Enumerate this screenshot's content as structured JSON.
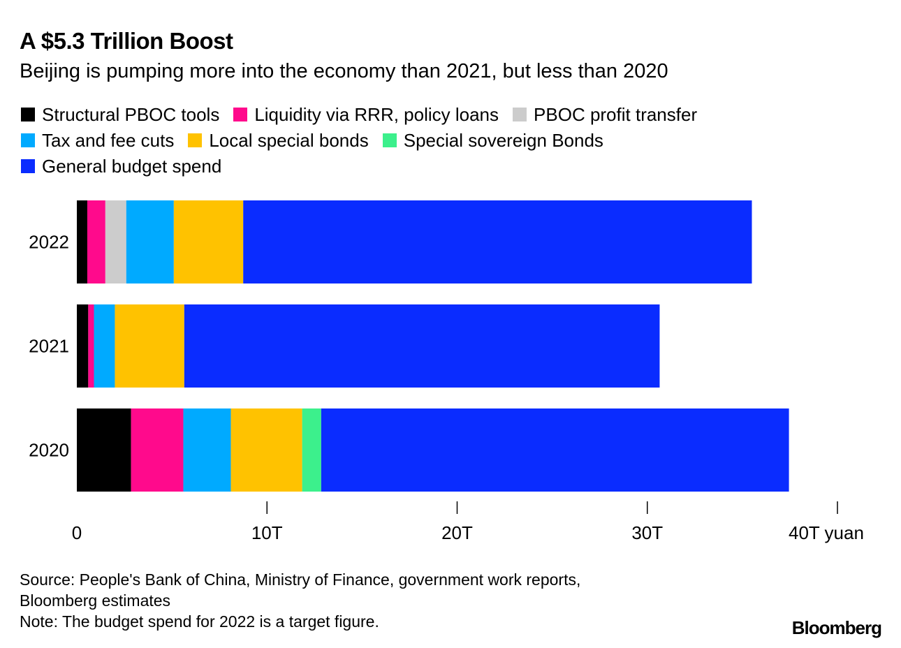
{
  "header": {
    "title": "A $5.3 Trillion Boost",
    "subtitle": "Beijing is pumping more into the economy than 2021, but less than 2020"
  },
  "chart_data": {
    "type": "bar",
    "orientation": "horizontal",
    "stacked": true,
    "categories": [
      "2022",
      "2021",
      "2020"
    ],
    "series": [
      {
        "name": "Structural PBOC tools",
        "color": "#000000",
        "values": [
          0.55,
          0.6,
          2.85
        ]
      },
      {
        "name": "Liquidity via RRR, policy loans",
        "color": "#ff0a8c",
        "values": [
          0.95,
          0.3,
          2.75
        ]
      },
      {
        "name": "PBOC profit transfer",
        "color": "#cccccc",
        "values": [
          1.1,
          0,
          0
        ]
      },
      {
        "name": "Tax and fee cuts",
        "color": "#00aaff",
        "values": [
          2.5,
          1.1,
          2.5
        ]
      },
      {
        "name": "Local special bonds",
        "color": "#ffc200",
        "values": [
          3.65,
          3.65,
          3.75
        ]
      },
      {
        "name": "Special sovereign Bonds",
        "color": "#3cf08c",
        "values": [
          0,
          0,
          1.0
        ]
      },
      {
        "name": "General budget spend",
        "color": "#0a2cff",
        "values": [
          26.75,
          25.0,
          24.6
        ]
      }
    ],
    "xlim": [
      0,
      40
    ],
    "xticks": [
      0,
      10,
      20,
      30,
      40
    ],
    "xtick_labels": [
      "0",
      "10T",
      "20T",
      "30T",
      "40T yuan"
    ],
    "legend_placement": "top",
    "grid": false
  },
  "footer": {
    "source": "Source: People's Bank of China, Ministry of Finance, government work reports,",
    "source2": "Bloomberg estimates",
    "note": "Note: The budget spend for 2022 is a target figure.",
    "logo": "Bloomberg"
  }
}
